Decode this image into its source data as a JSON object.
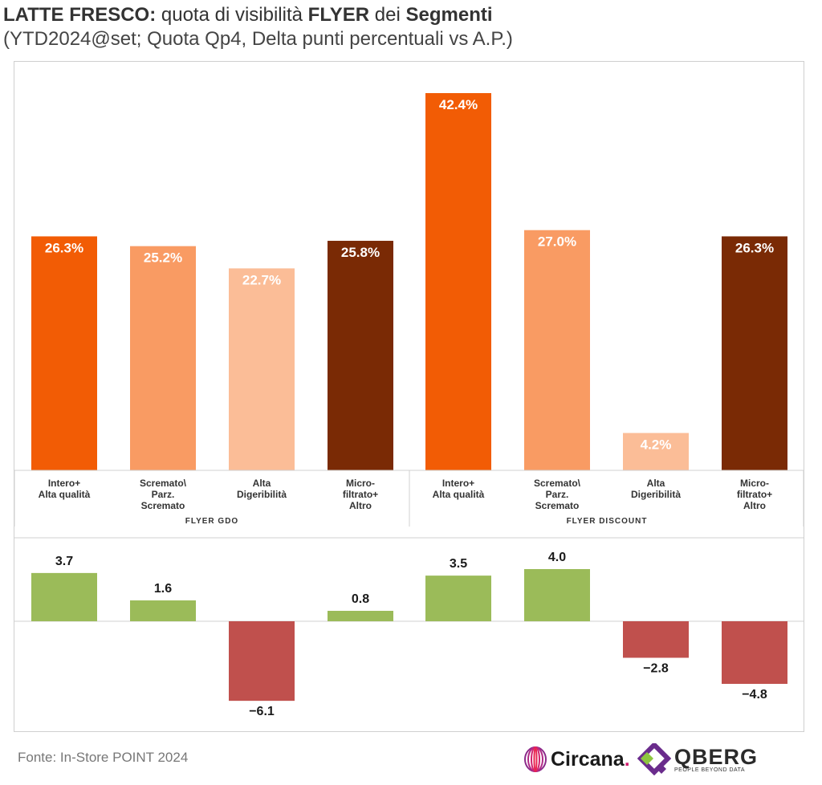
{
  "header": {
    "title_bold1": "LATTE FRESCO:",
    "title_mid1": " quota di visibilità ",
    "title_bold2": "FLYER",
    "title_mid2": " dei ",
    "title_bold3": "Segmenti",
    "subtitle": "(YTD2024@set; Quota Qp4, Delta punti percentuali vs A.P.)"
  },
  "chart_data": {
    "type": "bar",
    "groups": [
      {
        "name": "FLYER GDO",
        "categories": [
          [
            "Intero+",
            "Alta qualità"
          ],
          [
            "Scremato\\",
            "Parz.",
            "Scremato"
          ],
          [
            "Alta",
            "Digeribilità"
          ],
          [
            "Micro-",
            "filtrato+",
            "Altro"
          ]
        ]
      },
      {
        "name": "FLYER DISCOUNT",
        "categories": [
          [
            "Intero+",
            "Alta qualità"
          ],
          [
            "Scremato\\",
            "Parz.",
            "Scremato"
          ],
          [
            "Alta",
            "Digeribilità"
          ],
          [
            "Micro-",
            "filtrato+",
            "Altro"
          ]
        ]
      }
    ],
    "share_values": [
      26.3,
      25.2,
      22.7,
      25.8,
      42.4,
      27.0,
      4.2,
      26.3
    ],
    "share_labels": [
      "26.3%",
      "25.2%",
      "22.7%",
      "25.8%",
      "42.4%",
      "27.0%",
      "4.2%",
      "26.3%"
    ],
    "delta_values": [
      3.7,
      1.6,
      -6.1,
      0.8,
      3.5,
      4.0,
      -2.8,
      -4.8
    ],
    "delta_labels": [
      "3.7",
      "1.6",
      "-6.1",
      "0.8",
      "3.5",
      "4.0",
      "-2.8",
      "-4.8"
    ],
    "share_ylim": [
      0,
      45
    ],
    "delta_ylim": [
      -6.5,
      4.5
    ],
    "colors": {
      "segments": [
        "#f25c05",
        "#f99b63",
        "#fbbd97",
        "#7a2a05"
      ],
      "positive": "#9bbb59",
      "negative": "#c0504d",
      "grid": "#d0d0d0"
    }
  },
  "footer": {
    "source": "Fonte: In-Store POINT 2024",
    "logo1": "Circana",
    "logo1_dot": ".",
    "logo2": "QBERG",
    "logo2_tag": "PEOPLE BEYOND DATA"
  }
}
